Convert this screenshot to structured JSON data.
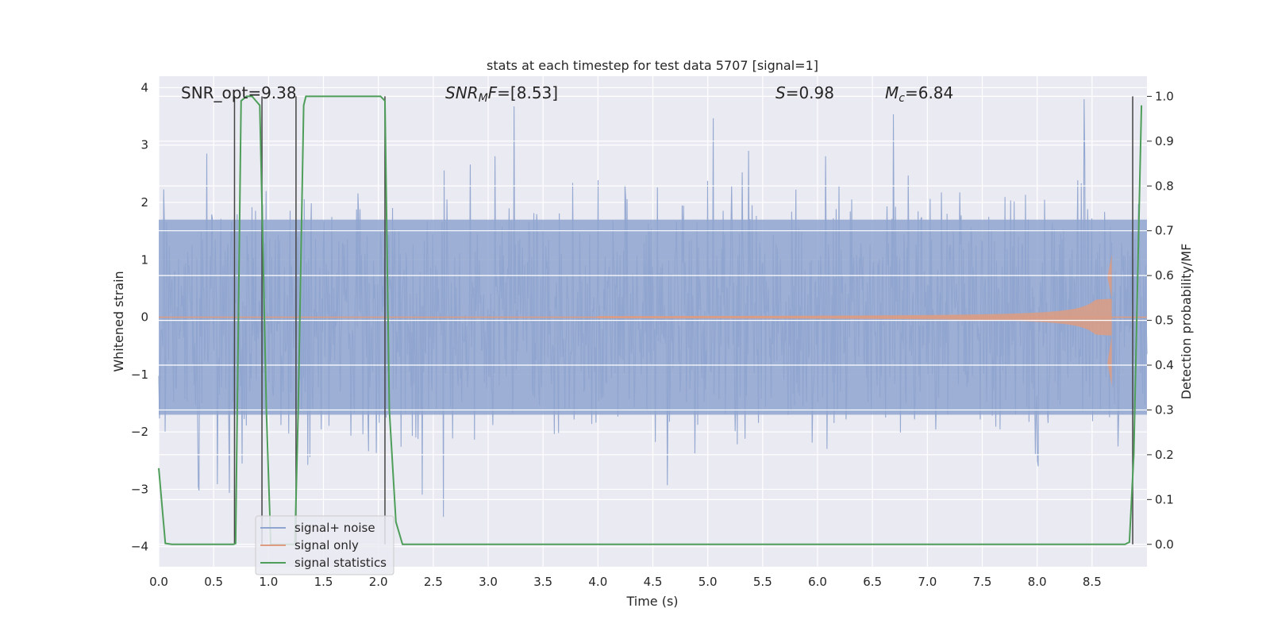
{
  "chart_data": {
    "type": "line",
    "title": "stats at each timestep for test data 5707 [signal=1]",
    "xlabel": "Time (s)",
    "ylabel": "Whitened strain",
    "y2label": "Detection probability/MF",
    "xlim": [
      0,
      9.0
    ],
    "ylim": [
      -4.35,
      4.2
    ],
    "y2lim": [
      -0.05,
      1.045
    ],
    "x_ticks": [
      0.0,
      0.5,
      1.0,
      1.5,
      2.0,
      2.5,
      3.0,
      3.5,
      4.0,
      4.5,
      5.0,
      5.5,
      6.0,
      6.5,
      7.0,
      7.5,
      8.0,
      8.5
    ],
    "x_tick_labels": [
      "0.0",
      "0.5",
      "1.0",
      "1.5",
      "2.0",
      "2.5",
      "3.0",
      "3.5",
      "4.0",
      "4.5",
      "5.0",
      "5.5",
      "6.0",
      "6.5",
      "7.0",
      "7.5",
      "8.0",
      "8.5"
    ],
    "y_ticks": [
      -4,
      -3,
      -2,
      -1,
      0,
      1,
      2,
      3,
      4
    ],
    "y_tick_labels": [
      "−4",
      "−3",
      "−2",
      "−1",
      "0",
      "1",
      "2",
      "3",
      "4"
    ],
    "y2_ticks": [
      0.0,
      0.1,
      0.2,
      0.3,
      0.4,
      0.5,
      0.6,
      0.7,
      0.8,
      0.9,
      1.0
    ],
    "y2_tick_labels": [
      "0.0",
      "0.1",
      "0.2",
      "0.3",
      "0.4",
      "0.5",
      "0.6",
      "0.7",
      "0.8",
      "0.9",
      "1.0"
    ],
    "grid": true,
    "legend_position": "bottom-left",
    "annotations": {
      "snr_opt": "SNR_opt=9.38",
      "snr_mf_sym": "SNR",
      "snr_mf_sub": "M",
      "snr_mf_f": "F",
      "snr_mf_val": "=[8.53]",
      "s_sym": "S",
      "s_val": "=0.98",
      "mc_sym": "M",
      "mc_sub": "c",
      "mc_val": "=6.84"
    },
    "series": [
      {
        "name": "signal+ noise",
        "color": "#8fa4cf",
        "axis": "left",
        "kind": "noise",
        "sample_count": 1400,
        "envelope_core": 1.7,
        "envelope_peak_max": 3.9,
        "envelope_peak_min": -4.1
      },
      {
        "name": "signal only",
        "color": "#dd9c82",
        "axis": "left",
        "kind": "chirp",
        "start": 4.0,
        "merger": 8.68,
        "amplitude_at_merger_upper": 1.1,
        "amplitude_at_merger_lower": -1.2
      },
      {
        "name": "signal statistics",
        "color": "#4e9e5a",
        "axis": "right",
        "kind": "line",
        "x": [
          0.0,
          0.06,
          0.12,
          0.68,
          0.7,
          0.75,
          0.8,
          0.85,
          0.92,
          0.95,
          0.98,
          1.02,
          1.24,
          1.27,
          1.32,
          1.34,
          2.02,
          2.06,
          2.1,
          2.16,
          2.22,
          8.8,
          8.84,
          8.88,
          8.92,
          8.95
        ],
        "y": [
          0.17,
          0.002,
          0.0,
          0.0,
          0.002,
          0.99,
          1.0,
          1.0,
          0.98,
          0.65,
          0.3,
          0.0,
          0.0,
          0.3,
          0.98,
          1.0,
          1.0,
          0.99,
          0.3,
          0.05,
          0.0,
          0.0,
          0.005,
          0.2,
          0.65,
          0.98
        ]
      }
    ],
    "vertical_markers": [
      0.69,
      0.94,
      1.25,
      2.06,
      8.87
    ]
  },
  "legend": [
    {
      "label": "signal+ noise",
      "color": "#8fa4cf"
    },
    {
      "label": "signal only",
      "color": "#dd9c82"
    },
    {
      "label": "signal statistics",
      "color": "#4e9e5a"
    }
  ]
}
